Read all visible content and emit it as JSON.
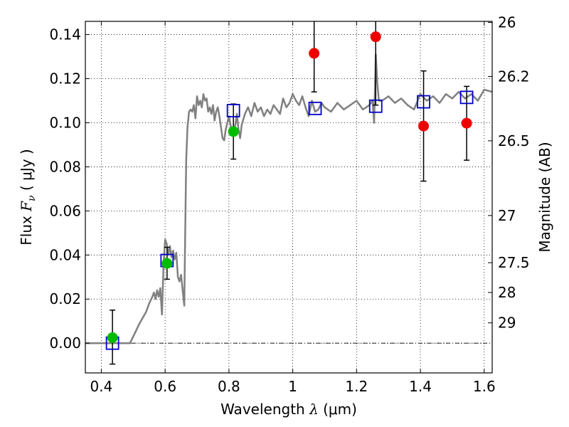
{
  "chart_data": {
    "type": "scatter",
    "xlabel_prefix": "Wavelength  ",
    "xlabel_math": "λ",
    "xlabel_suffix": " (μm)",
    "ylabel_prefix": "Flux  ",
    "ylabel_math": "F",
    "ylabel_sub": "ν",
    "ylabel_suffix": "  ( μJy )",
    "y2label": "Magnitude (AB)",
    "xlim": [
      0.35,
      1.625
    ],
    "ylim": [
      -0.0135,
      0.146
    ],
    "x_ticks": [
      0.4,
      0.6,
      0.8,
      1.0,
      1.2,
      1.4,
      1.6
    ],
    "x_tick_labels": [
      "0.4",
      "0.6",
      "0.8",
      "1",
      "1.2",
      "1.4",
      "1.6"
    ],
    "y_ticks": [
      0.0,
      0.02,
      0.04,
      0.06,
      0.08,
      0.1,
      0.12,
      0.14
    ],
    "y_tick_labels": [
      "0.00",
      "0.02",
      "0.04",
      "0.06",
      "0.08",
      "0.10",
      "0.12",
      "0.14"
    ],
    "mag_ticks": [
      {
        "label": "26",
        "flux": 0.1455
      },
      {
        "label": "26.2",
        "flux": 0.121
      },
      {
        "label": "26.5",
        "flux": 0.0918
      },
      {
        "label": "27",
        "flux": 0.0579
      },
      {
        "label": "27.5",
        "flux": 0.0365
      },
      {
        "label": "28",
        "flux": 0.023
      },
      {
        "label": "29",
        "flux": 0.0092
      }
    ],
    "grid": true,
    "zero_line": 0.0,
    "series": [
      {
        "name": "model-spectrum",
        "kind": "line",
        "color": "#808080",
        "x": [
          0.35,
          0.49,
          0.5,
          0.52,
          0.54,
          0.55,
          0.56,
          0.565,
          0.57,
          0.575,
          0.58,
          0.585,
          0.59,
          0.595,
          0.6,
          0.605,
          0.61,
          0.615,
          0.62,
          0.625,
          0.63,
          0.635,
          0.64,
          0.645,
          0.65,
          0.655,
          0.66,
          0.663,
          0.666,
          0.67,
          0.675,
          0.68,
          0.685,
          0.69,
          0.695,
          0.7,
          0.705,
          0.71,
          0.715,
          0.72,
          0.725,
          0.73,
          0.735,
          0.74,
          0.745,
          0.75,
          0.755,
          0.76,
          0.765,
          0.77,
          0.775,
          0.78,
          0.785,
          0.79,
          0.795,
          0.8,
          0.81,
          0.82,
          0.825,
          0.83,
          0.835,
          0.84,
          0.85,
          0.86,
          0.87,
          0.88,
          0.89,
          0.9,
          0.91,
          0.92,
          0.93,
          0.94,
          0.95,
          0.96,
          0.97,
          0.98,
          0.99,
          1.0,
          1.01,
          1.02,
          1.03,
          1.04,
          1.05,
          1.06,
          1.07,
          1.08,
          1.09,
          1.1,
          1.12,
          1.14,
          1.16,
          1.18,
          1.2,
          1.22,
          1.24,
          1.25,
          1.255,
          1.26,
          1.265,
          1.27,
          1.28,
          1.3,
          1.32,
          1.34,
          1.36,
          1.38,
          1.4,
          1.42,
          1.44,
          1.46,
          1.48,
          1.5,
          1.52,
          1.54,
          1.56,
          1.58,
          1.6,
          1.625
        ],
        "y": [
          0.0,
          0.0,
          0.003,
          0.009,
          0.014,
          0.018,
          0.021,
          0.023,
          0.02,
          0.024,
          0.021,
          0.025,
          0.013,
          0.035,
          0.047,
          0.045,
          0.04,
          0.044,
          0.039,
          0.042,
          0.038,
          0.041,
          0.03,
          0.028,
          0.031,
          0.024,
          0.017,
          0.05,
          0.083,
          0.098,
          0.105,
          0.106,
          0.105,
          0.108,
          0.102,
          0.112,
          0.108,
          0.11,
          0.107,
          0.113,
          0.11,
          0.111,
          0.105,
          0.107,
          0.104,
          0.108,
          0.101,
          0.105,
          0.107,
          0.103,
          0.098,
          0.093,
          0.092,
          0.097,
          0.1,
          0.103,
          0.095,
          0.099,
          0.104,
          0.097,
          0.093,
          0.099,
          0.104,
          0.107,
          0.103,
          0.109,
          0.105,
          0.107,
          0.103,
          0.106,
          0.104,
          0.108,
          0.106,
          0.104,
          0.111,
          0.107,
          0.109,
          0.113,
          0.11,
          0.108,
          0.112,
          0.107,
          0.103,
          0.11,
          0.105,
          0.106,
          0.109,
          0.107,
          0.105,
          0.109,
          0.106,
          0.108,
          0.11,
          0.106,
          0.108,
          0.11,
          0.1,
          0.131,
          0.118,
          0.11,
          0.11,
          0.112,
          0.109,
          0.111,
          0.108,
          0.106,
          0.113,
          0.11,
          0.112,
          0.109,
          0.113,
          0.111,
          0.114,
          0.111,
          0.113,
          0.11,
          0.115,
          0.114
        ]
      },
      {
        "name": "model-band-flux",
        "kind": "square",
        "color": "#0000cc",
        "x": [
          0.435,
          0.606,
          0.814,
          1.07,
          1.26,
          1.41,
          1.545
        ],
        "y": [
          0.0,
          0.0375,
          0.1055,
          0.1065,
          0.1075,
          0.1095,
          0.1115
        ]
      },
      {
        "name": "observed-flux-green",
        "kind": "circle",
        "color": "#00bb00",
        "x": [
          0.435,
          0.606,
          0.814
        ],
        "y": [
          0.0025,
          0.0362,
          0.096
        ]
      },
      {
        "name": "observed-flux-red",
        "kind": "circle",
        "color": "#ee0000",
        "x": [
          1.067,
          1.26,
          1.41,
          1.545
        ],
        "y": [
          0.1315,
          0.139,
          0.0985,
          0.0998
        ]
      }
    ],
    "error_bars": [
      {
        "x": 0.435,
        "low": -0.0095,
        "high": 0.015
      },
      {
        "x": 0.606,
        "low": 0.029,
        "high": 0.0435
      },
      {
        "x": 0.814,
        "low": 0.0835,
        "high": 0.1085
      },
      {
        "x": 1.067,
        "low": 0.114,
        "high": 0.148
      },
      {
        "x": 1.26,
        "low": 0.108,
        "high": 0.148
      },
      {
        "x": 1.41,
        "low": 0.0735,
        "high": 0.1235
      },
      {
        "x": 1.545,
        "low": 0.083,
        "high": 0.1165
      }
    ]
  }
}
